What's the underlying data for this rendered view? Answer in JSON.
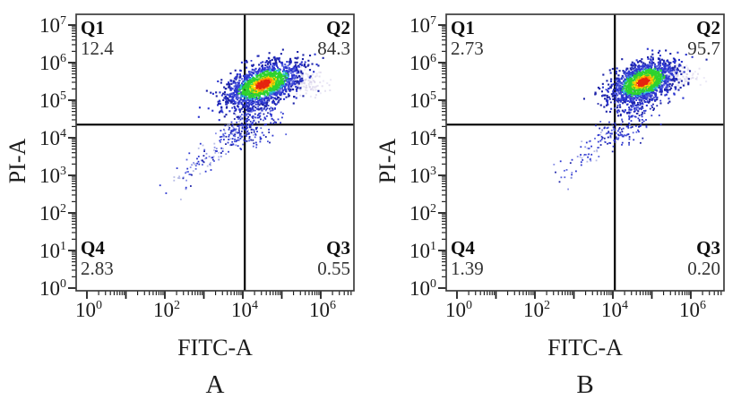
{
  "style": {
    "colors": {
      "background": "#ffffff",
      "box_border": "#3d3d3d",
      "axis_tick": "#111111",
      "gate_line": "#000000",
      "text": "#1c1c1c",
      "density_red": "#e5250f",
      "density_orange": "#ff8a00",
      "density_yellow": "#ffd900",
      "density_green": "#2fd32f",
      "density_cyan": "#2fb9e0",
      "density_blue1": "#2b35cf",
      "density_blue2": "#1d23a8",
      "density_blue3": "#5560dd",
      "tail_lightblue": "#98a0dc",
      "pale1": "#cfc8e6",
      "pale2": "#ddd8f0"
    }
  },
  "chart_data": [
    {
      "type": "scatter",
      "subtype": "flow-cytometry-pseudocolor-density",
      "title": "A",
      "xlabel": "FITC-A",
      "ylabel": "PI-A",
      "x_scale": "log",
      "y_scale": "log",
      "x_range_decades": [
        0,
        6.8
      ],
      "y_range_decades": [
        0,
        7.3
      ],
      "x_labeled_tick_exponents": [
        0,
        2,
        4,
        6
      ],
      "y_labeled_tick_exponents": [
        0,
        1,
        2,
        3,
        4,
        5,
        6,
        7
      ],
      "gate": {
        "x_decade": 4.05,
        "y_decade": 4.35
      },
      "quadrants": [
        {
          "id": "Q1",
          "percent": 12.4,
          "percent_label": "12.4",
          "position": "top-left"
        },
        {
          "id": "Q2",
          "percent": 84.3,
          "percent_label": "84.3",
          "position": "top-right"
        },
        {
          "id": "Q3",
          "percent": 0.55,
          "percent_label": "0.55",
          "position": "bottom-right"
        },
        {
          "id": "Q4",
          "percent": 2.83,
          "percent_label": "2.83",
          "position": "bottom-left"
        }
      ],
      "seed": 11,
      "populations": {
        "main_cluster": {
          "center_decades": [
            4.52,
            5.42
          ],
          "sigma_decades": [
            0.5,
            0.27
          ],
          "tilt": 0.32,
          "n": 1550
        },
        "lower_spray": {
          "center_decades": [
            4.35,
            4.85
          ],
          "sigma_decades": [
            0.33,
            0.38
          ],
          "n": 240
        },
        "below_gate": {
          "center_decades": [
            4.1,
            4.1
          ],
          "sigma_decades": [
            0.28,
            0.18
          ],
          "n": 80
        },
        "tail": {
          "from_decades": [
            2.05,
            2.5
          ],
          "to_decades": [
            4.0,
            4.3
          ],
          "jitter": 0.17,
          "n": 150
        },
        "pale_cloud": {
          "center_decades": [
            5.5,
            5.5
          ],
          "sigma_decades": [
            0.3,
            0.17
          ],
          "n": 150
        }
      }
    },
    {
      "type": "scatter",
      "subtype": "flow-cytometry-pseudocolor-density",
      "title": "B",
      "xlabel": "FITC-A",
      "ylabel": "PI-A",
      "x_scale": "log",
      "y_scale": "log",
      "x_range_decades": [
        0,
        6.8
      ],
      "y_range_decades": [
        0,
        7.3
      ],
      "x_labeled_tick_exponents": [
        0,
        2,
        4,
        6
      ],
      "y_labeled_tick_exponents": [
        0,
        1,
        2,
        3,
        4,
        5,
        6,
        7
      ],
      "gate": {
        "x_decade": 4.05,
        "y_decade": 4.35
      },
      "quadrants": [
        {
          "id": "Q1",
          "percent": 2.73,
          "percent_label": "2.73",
          "position": "top-left"
        },
        {
          "id": "Q2",
          "percent": 95.7,
          "percent_label": "95.7",
          "position": "top-right"
        },
        {
          "id": "Q3",
          "percent": 0.2,
          "percent_label": "0.20",
          "position": "bottom-right"
        },
        {
          "id": "Q4",
          "percent": 1.39,
          "percent_label": "1.39",
          "position": "bottom-left"
        }
      ],
      "seed": 23,
      "populations": {
        "main_cluster": {
          "center_decades": [
            4.78,
            5.48
          ],
          "sigma_decades": [
            0.43,
            0.26
          ],
          "tilt": 0.3,
          "n": 1450
        },
        "lower_spray": {
          "center_decades": [
            4.6,
            4.9
          ],
          "sigma_decades": [
            0.3,
            0.37
          ],
          "n": 210
        },
        "below_gate": {
          "center_decades": [
            4.15,
            4.12
          ],
          "sigma_decades": [
            0.25,
            0.16
          ],
          "n": 55
        },
        "tail": {
          "from_decades": [
            2.3,
            2.5
          ],
          "to_decades": [
            3.95,
            4.2
          ],
          "jitter": 0.16,
          "n": 85
        },
        "pale_cloud": {
          "center_decades": [
            5.6,
            5.62
          ],
          "sigma_decades": [
            0.27,
            0.15
          ],
          "n": 160
        }
      }
    }
  ]
}
